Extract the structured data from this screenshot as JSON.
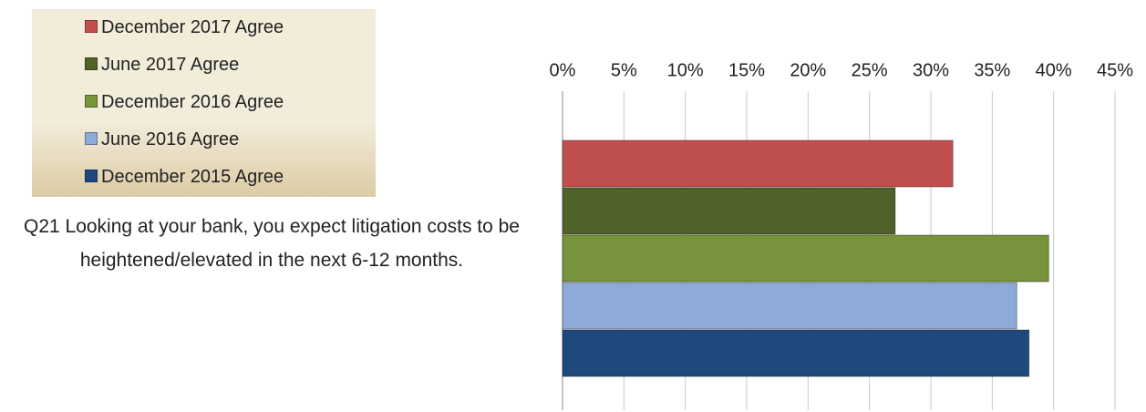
{
  "chart_data": {
    "type": "hbar",
    "categories": [
      "Q21 Looking at your bank, you expect litigation costs to be heightened/elevated in the next 6-12 months."
    ],
    "series": [
      {
        "name": "December 2017 Agree",
        "color": "#c0504d",
        "values": [
          31.8
        ]
      },
      {
        "name": "June 2017 Agree",
        "color": "#4f6228",
        "values": [
          27.1
        ]
      },
      {
        "name": "December 2016  Agree",
        "color": "#77933c",
        "values": [
          39.6
        ]
      },
      {
        "name": "June 2016  Agree",
        "color": "#8eaad6",
        "values": [
          37
        ]
      },
      {
        "name": "December 2015  Agree",
        "color": "#1f497d",
        "values": [
          38
        ]
      }
    ],
    "xlim": [
      0,
      45
    ],
    "xticks": [
      {
        "value": 0,
        "label": "0%"
      },
      {
        "value": 5,
        "label": "5%"
      },
      {
        "value": 10,
        "label": "10%"
      },
      {
        "value": 15,
        "label": "15%"
      },
      {
        "value": 20,
        "label": "20%"
      },
      {
        "value": 25,
        "label": "25%"
      },
      {
        "value": 30,
        "label": "30%"
      },
      {
        "value": 35,
        "label": "35%"
      },
      {
        "value": 40,
        "label": "40%"
      },
      {
        "value": 45,
        "label": "45%"
      }
    ],
    "grid": true
  }
}
